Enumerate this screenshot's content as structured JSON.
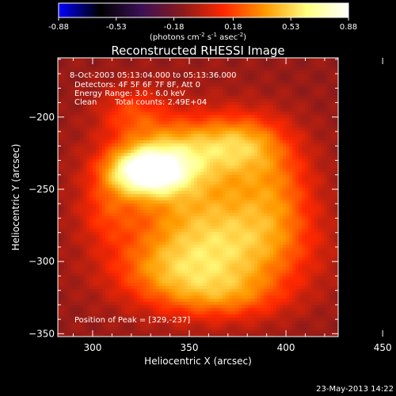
{
  "chart_data": {
    "type": "heatmap",
    "title": "Reconstructed RHESSI Image",
    "xlabel": "Heliocentric X (arcsec)",
    "ylabel": "Heliocentric Y (arcsec)",
    "xlim": [
      282,
      427
    ],
    "ylim": [
      -352,
      -159
    ],
    "x_ticks": [
      300,
      350,
      400,
      450
    ],
    "y_ticks": [
      -350,
      -300,
      -250,
      -200
    ],
    "colorbar": {
      "range": [
        -0.88,
        0.88
      ],
      "ticks": [
        "-0.88",
        "-0.53",
        "-0.18",
        "0.18",
        "0.53",
        "0.88"
      ],
      "label_text": "(photons cm",
      "label_sup1": "-2",
      "label_mid1": " s",
      "label_sup2": "-1",
      "label_mid2": " asec",
      "label_sup3": "-2",
      "label_close": ")",
      "colormap": [
        "#0000ff",
        "#000000",
        "#3b1055",
        "#8a1a1a",
        "#ff2800",
        "#ff9a00",
        "#ffff80",
        "#ffffff"
      ]
    },
    "annotations": {
      "time_range": "8-Oct-2003 05:13:04.000 to 05:13:36.000",
      "detectors": "Detectors: 4F 5F 6F 7F 8F, Att 0",
      "energy": "Energy Range: 3.0 - 6.0 keV",
      "method": "Clean",
      "counts": "Total counts: 2.49E+04",
      "peak": "Position of Peak = [329,-237]"
    },
    "peak_position": [
      329,
      -237
    ],
    "blobs": [
      {
        "x": 328,
        "y": -238,
        "sx": 14,
        "sy": 11,
        "a": 1.0
      },
      {
        "x": 345,
        "y": -222,
        "sx": 22,
        "sy": 15,
        "a": 0.4
      },
      {
        "x": 352,
        "y": -262,
        "sx": 28,
        "sy": 35,
        "a": 0.48
      },
      {
        "x": 380,
        "y": -292,
        "sx": 25,
        "sy": 22,
        "a": 0.4
      },
      {
        "x": 378,
        "y": -218,
        "sx": 15,
        "sy": 14,
        "a": 0.38
      },
      {
        "x": 395,
        "y": -250,
        "sx": 14,
        "sy": 25,
        "a": 0.3
      },
      {
        "x": 340,
        "y": -307,
        "sx": 22,
        "sy": 16,
        "a": 0.35
      },
      {
        "x": 368,
        "y": -324,
        "sx": 22,
        "sy": 12,
        "a": 0.3
      },
      {
        "x": 320,
        "y": -196,
        "sx": 12,
        "sy": 12,
        "a": 0.25
      },
      {
        "x": 307,
        "y": -265,
        "sx": 10,
        "sy": 16,
        "a": 0.2
      }
    ],
    "background_level": -0.1
  },
  "footer": {
    "timestamp": "23-May-2013 14:22"
  }
}
